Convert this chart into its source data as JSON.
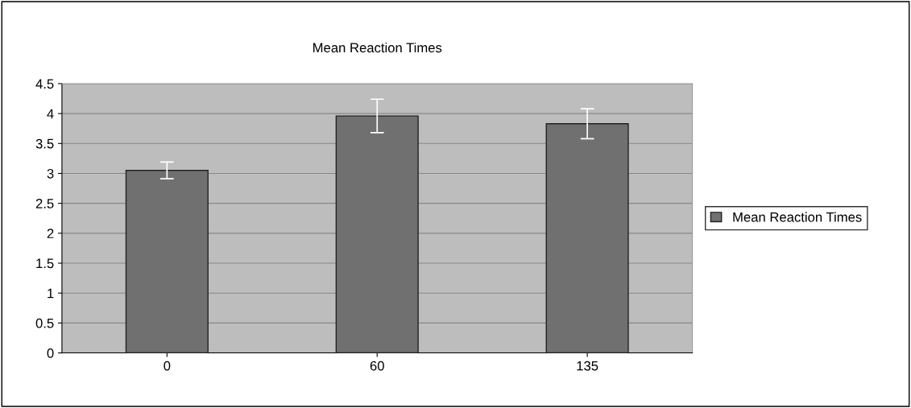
{
  "chart_data": {
    "type": "bar",
    "title": "Mean Reaction Times",
    "categories": [
      "0",
      "60",
      "135"
    ],
    "series": [
      {
        "name": "Mean Reaction Times",
        "color": "#707070",
        "values": [
          3.05,
          3.96,
          3.83
        ],
        "errors": [
          0.14,
          0.28,
          0.25
        ]
      }
    ],
    "ylim": [
      0,
      4.5
    ],
    "yticks": [
      0,
      0.5,
      1,
      1.5,
      2,
      2.5,
      3,
      3.5,
      4,
      4.5
    ],
    "grid": "y",
    "legend": "right"
  }
}
